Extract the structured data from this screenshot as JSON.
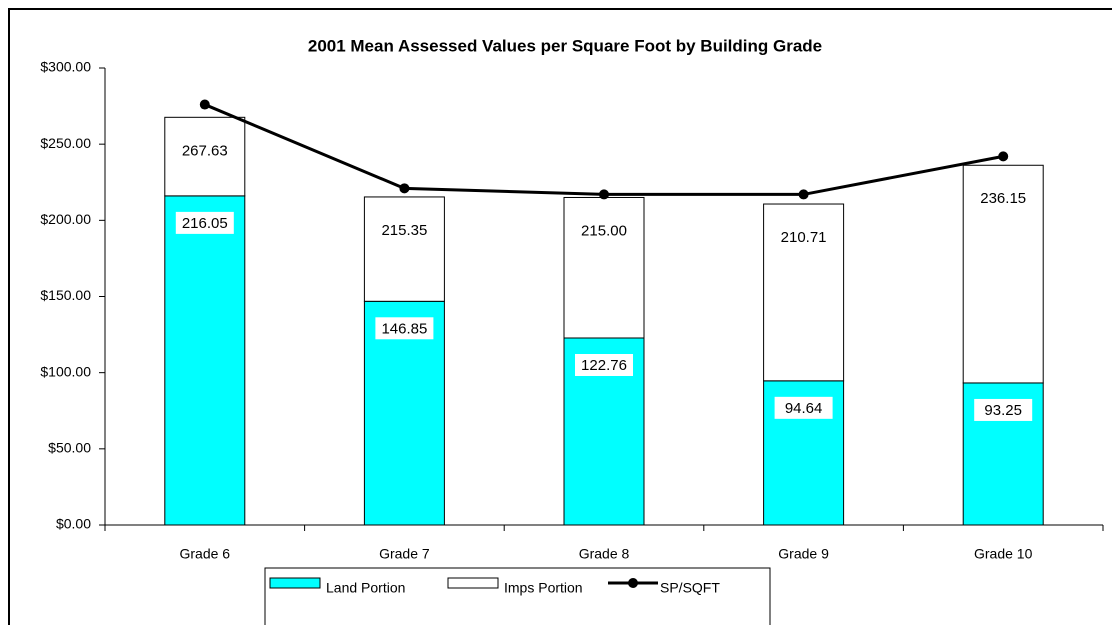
{
  "chart_data": {
    "type": "bar",
    "title": "2001 Mean Assessed Values per Square Foot by Building Grade",
    "categories": [
      "Grade 6",
      "Grade 7",
      "Grade 8",
      "Grade 9",
      "Grade 10"
    ],
    "series": [
      {
        "name": "Land Portion",
        "color": "#00ffff",
        "values": [
          216.05,
          146.85,
          122.76,
          94.64,
          93.25
        ],
        "value_labels": [
          "216.05",
          "146.85",
          "122.76",
          "94.64",
          "93.25"
        ]
      },
      {
        "name": "Imps Portion",
        "color": "#ffffff",
        "values": [
          51.58,
          68.5,
          92.24,
          116.07,
          142.9
        ]
      },
      {
        "name": "SP/SQFT",
        "type": "line",
        "color": "#000000",
        "values": [
          276,
          221,
          217,
          217,
          242
        ]
      }
    ],
    "totals": [
      267.63,
      215.35,
      215.0,
      210.71,
      236.15
    ],
    "total_labels": [
      "267.63",
      "215.35",
      "215.00",
      "210.71",
      "236.15"
    ],
    "ylim": [
      0,
      300
    ],
    "yticks": [
      {
        "value": 0,
        "label": "$0.00"
      },
      {
        "value": 50,
        "label": "$50.00"
      },
      {
        "value": 100,
        "label": "$100.00"
      },
      {
        "value": 150,
        "label": "$150.00"
      },
      {
        "value": 200,
        "label": "$200.00"
      },
      {
        "value": 250,
        "label": "$250.00"
      },
      {
        "value": 300,
        "label": "$300.00"
      }
    ],
    "grid": false,
    "legend": "bottom"
  }
}
